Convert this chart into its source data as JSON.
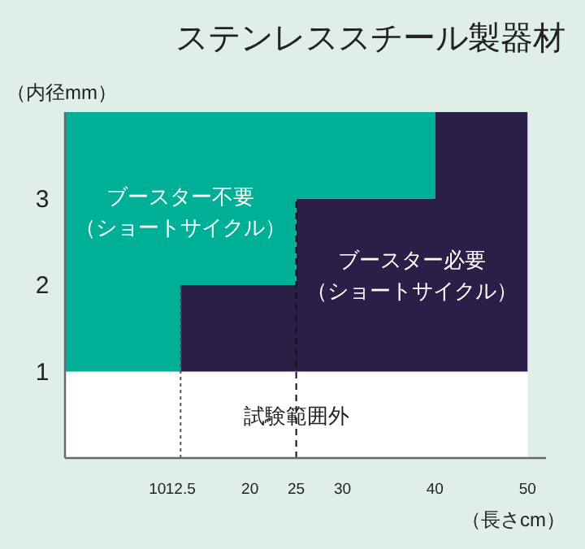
{
  "chart_data": {
    "type": "area",
    "stacked": true,
    "title": "ステンレススチール製器材",
    "ylabel": "（内径mm）",
    "xlabel": "（長さcm）",
    "x": [
      0,
      12.5,
      12.5,
      25,
      25,
      40,
      40,
      50
    ],
    "series": [
      {
        "name": "試験範囲外",
        "color": "#ffffff",
        "values": [
          1,
          1,
          1,
          1,
          1,
          1,
          1,
          1
        ]
      },
      {
        "name": "ブースター必要（ショートサイクル）",
        "color": "#2b1e47",
        "values": [
          null,
          null,
          1,
          1,
          2,
          2,
          3,
          3
        ]
      },
      {
        "name": "ブースター不要（ショートサイクル）",
        "color": "#00b096",
        "values": [
          3,
          3,
          2,
          2,
          1,
          1,
          null,
          null
        ]
      }
    ],
    "xlim": [
      0,
      52
    ],
    "xticks": [
      10,
      12.5,
      20,
      25,
      30,
      40,
      50
    ],
    "ylim": [
      0,
      4
    ],
    "yticks": [
      1,
      2,
      3
    ],
    "ref_lines": [
      {
        "axis": "x",
        "value": 12.5,
        "color": "#555555",
        "line_style": "dotted"
      },
      {
        "axis": "x",
        "value": 25,
        "color": "#111111",
        "line_style": "dashed"
      }
    ],
    "grid": false
  }
}
